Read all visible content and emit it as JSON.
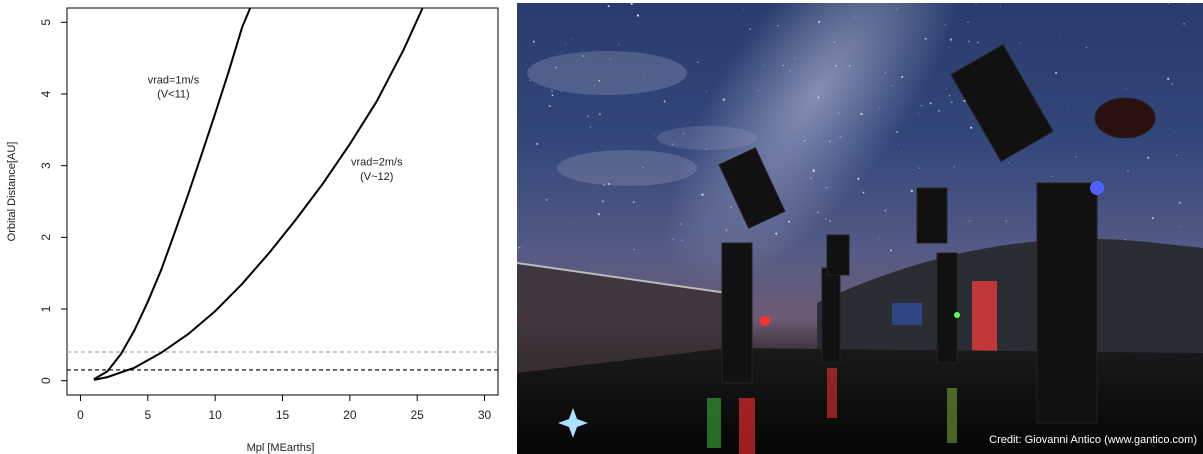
{
  "chart_data": {
    "type": "line",
    "xlabel": "Mpl [MEarths]",
    "ylabel": "Orbital Distance[AU]",
    "xlim": [
      -1,
      31
    ],
    "ylim": [
      -0.2,
      5.2
    ],
    "x_ticks": [
      "0",
      "5",
      "10",
      "15",
      "20",
      "25",
      "30"
    ],
    "y_ticks": [
      "0",
      "1",
      "2",
      "3",
      "4",
      "5"
    ],
    "grid": false,
    "series": [
      {
        "name": "vrad=1m/s",
        "sublabel": "(V<11)",
        "x": [
          1.0,
          2.0,
          3.0,
          4.0,
          5.0,
          6.0,
          7.0,
          8.0,
          9.0,
          10.0,
          11.0,
          12.0,
          12.6
        ],
        "y": [
          0.02,
          0.13,
          0.37,
          0.7,
          1.1,
          1.55,
          2.07,
          2.6,
          3.16,
          3.73,
          4.31,
          4.93,
          5.2
        ],
        "color": "#000000"
      },
      {
        "name": "vrad=2m/s",
        "sublabel": "(V~12)",
        "x": [
          1.0,
          2.0,
          4.0,
          6.0,
          8.0,
          10.0,
          12.0,
          14.0,
          16.0,
          18.0,
          20.0,
          22.0,
          24.0,
          25.4
        ],
        "y": [
          0.01,
          0.05,
          0.18,
          0.39,
          0.65,
          0.97,
          1.35,
          1.78,
          2.25,
          2.75,
          3.3,
          3.9,
          4.62,
          5.2
        ],
        "color": "#000000"
      }
    ],
    "hlines": [
      {
        "y": 0.4,
        "style": "dashed",
        "color": "#aaaaaa"
      },
      {
        "y": 0.15,
        "style": "dashed",
        "color": "#000000"
      }
    ]
  },
  "photo": {
    "credit": "Credit: Giovanni Antico (www.gantico.com)"
  }
}
